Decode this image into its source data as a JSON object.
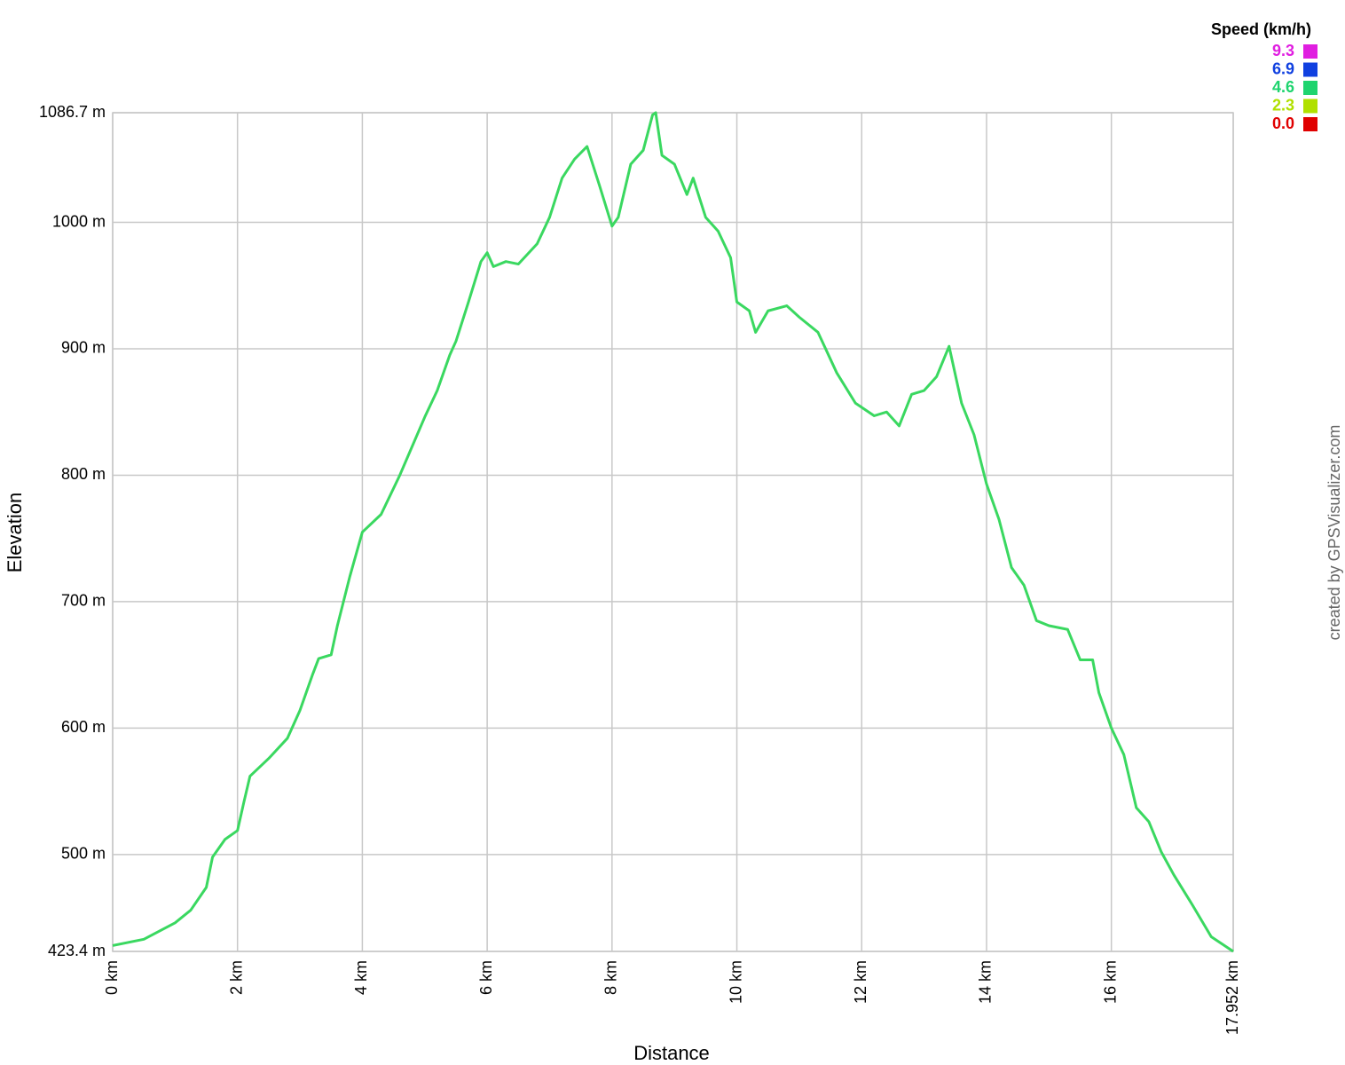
{
  "chart_data": {
    "type": "line",
    "xlabel": "Distance",
    "ylabel": "Elevation",
    "credit": "created by GPSVisualizer.com",
    "legend_title": "Speed (km/h)",
    "speed_scale": [
      {
        "value": 9.3,
        "color": "#e01ee0"
      },
      {
        "value": 6.9,
        "color": "#1040e0"
      },
      {
        "value": 4.6,
        "color": "#1ed46e"
      },
      {
        "value": 2.3,
        "color": "#b0e000"
      },
      {
        "value": 0,
        "label": "0.0",
        "color": "#e00000"
      }
    ],
    "line_color": "#3ad860",
    "grid": true,
    "xlim": [
      0,
      17.952
    ],
    "ylim": [
      423.4,
      1086.7
    ],
    "xticks": [
      {
        "value": 0,
        "label": "0 km"
      },
      {
        "value": 2,
        "label": "2 km"
      },
      {
        "value": 4,
        "label": "4 km"
      },
      {
        "value": 6,
        "label": "6 km"
      },
      {
        "value": 8,
        "label": "8 km"
      },
      {
        "value": 10,
        "label": "10 km"
      },
      {
        "value": 12,
        "label": "12 km"
      },
      {
        "value": 14,
        "label": "14 km"
      },
      {
        "value": 16,
        "label": "16 km"
      },
      {
        "value": 17.952,
        "label": "17.952 km"
      }
    ],
    "yticks": [
      {
        "value": 423.4,
        "label": "423.4 m"
      },
      {
        "value": 500,
        "label": "500 m"
      },
      {
        "value": 600,
        "label": "600 m"
      },
      {
        "value": 700,
        "label": "700 m"
      },
      {
        "value": 800,
        "label": "800 m"
      },
      {
        "value": 900,
        "label": "900 m"
      },
      {
        "value": 1000,
        "label": "1000 m"
      },
      {
        "value": 1086.7,
        "label": "1086.7 m"
      }
    ],
    "x": [
      0,
      0.5,
      1.0,
      1.25,
      1.5,
      1.6,
      1.8,
      2.0,
      2.1,
      2.2,
      2.5,
      2.8,
      3.0,
      3.2,
      3.3,
      3.5,
      3.6,
      3.8,
      4.0,
      4.3,
      4.6,
      5.0,
      5.2,
      5.4,
      5.5,
      5.7,
      5.9,
      6.0,
      6.1,
      6.3,
      6.5,
      6.8,
      7.0,
      7.2,
      7.4,
      7.6,
      7.8,
      8.0,
      8.1,
      8.3,
      8.5,
      8.65,
      8.7,
      8.8,
      9.0,
      9.2,
      9.3,
      9.5,
      9.7,
      9.9,
      10.0,
      10.2,
      10.3,
      10.5,
      10.8,
      11.0,
      11.3,
      11.6,
      11.9,
      12.2,
      12.4,
      12.6,
      12.8,
      13.0,
      13.2,
      13.4,
      13.6,
      13.8,
      14.0,
      14.2,
      14.4,
      14.6,
      14.8,
      15.0,
      15.3,
      15.5,
      15.7,
      15.8,
      16.0,
      16.2,
      16.4,
      16.6,
      16.8,
      17.0,
      17.3,
      17.6,
      17.952
    ],
    "values": [
      428,
      433,
      446,
      456,
      474,
      498,
      512,
      519,
      541,
      562,
      576,
      592,
      614,
      642,
      655,
      658,
      681,
      720,
      755,
      769,
      800,
      846,
      867,
      895,
      906,
      937,
      969,
      976,
      965,
      969,
      967,
      983,
      1004,
      1035,
      1050,
      1060,
      1029,
      997,
      1004,
      1046,
      1057,
      1085,
      1086.7,
      1053,
      1046,
      1022,
      1035,
      1004,
      993,
      972,
      937,
      930,
      913,
      930,
      934,
      925,
      913,
      881,
      857,
      847,
      850,
      839,
      864,
      867,
      878,
      902,
      857,
      832,
      793,
      765,
      727,
      713,
      685,
      681,
      678,
      654,
      654,
      628,
      600,
      579,
      537,
      526,
      502,
      484,
      460,
      435,
      423.4
    ]
  }
}
